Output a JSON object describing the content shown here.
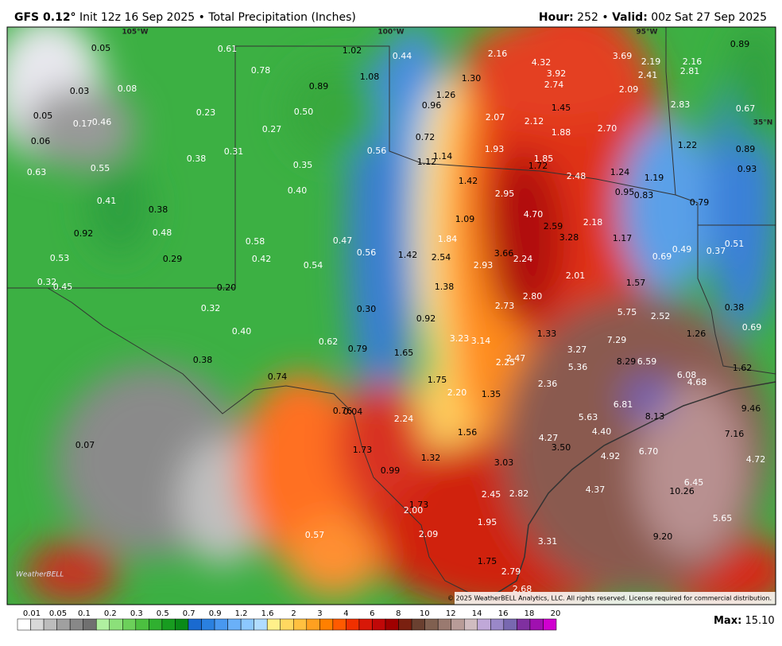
{
  "header": {
    "model": "GFS 0.12°",
    "description": "Init 12z 16 Sep 2025 • Total Precipitation (Inches)",
    "hour_label": "Hour:",
    "hour_value": "252",
    "separator": "•",
    "valid_label": "Valid:",
    "valid_value": "00z Sat 27 Sep 2025"
  },
  "map": {
    "graticule": [
      "105°W",
      "100°W",
      "95°W",
      "35°N"
    ],
    "labels": [
      "0.05",
      "0.61",
      "1.02",
      "0.44",
      "2.16",
      "4.32",
      "3.69",
      "2.19",
      "2.16",
      "0.89",
      "0.78",
      "3.92",
      "2.81",
      "1.30",
      "2.41",
      "0.03",
      "0.08",
      "0.89",
      "1.08",
      "2.74",
      "2.09",
      "1.26",
      "0.96",
      "1.45",
      "2.83",
      "0.67",
      "0.05",
      "0.23",
      "0.50",
      "2.07",
      "2.12",
      "0.17",
      "0.46",
      "1.88",
      "2.70",
      "0.06",
      "0.27",
      "0.72",
      "1.22",
      "0.89",
      "0.31",
      "0.56",
      "1.93",
      "1.85",
      "0.38",
      "1.14",
      "1.12",
      "1.72",
      "0.35",
      "0.93",
      "0.55",
      "0.63",
      "2.48",
      "1.24",
      "1.19",
      "1.42",
      "0.40",
      "2.95",
      "0.95",
      "0.83",
      "0.79",
      "0.41",
      "0.38",
      "4.70",
      "1.09",
      "2.18",
      "2.59",
      "0.92",
      "0.48",
      "1.84",
      "3.28",
      "1.17",
      "0.51",
      "0.58",
      "0.47",
      "0.49",
      "0.37",
      "0.53",
      "0.29",
      "0.42",
      "0.56",
      "1.42",
      "2.54",
      "3.66",
      "2.24",
      "0.69",
      "0.54",
      "2.93",
      "2.01",
      "0.32",
      "0.45",
      "0.20",
      "1.38",
      "1.57",
      "0.32",
      "0.30",
      "2.73",
      "2.80",
      "5.75",
      "2.52",
      "0.38",
      "0.92",
      "0.40",
      "1.33",
      "1.26",
      "0.69",
      "0.62",
      "3.23",
      "3.14",
      "7.29",
      "3.27",
      "0.79",
      "1.65",
      "2.25",
      "2.47",
      "0.38",
      "8.29",
      "6.59",
      "5.36",
      "1.62",
      "0.74",
      "1.75",
      "6.08",
      "4.68",
      "2.36",
      "2.20",
      "1.35",
      "6.81",
      "9.46",
      "0.76",
      "0.04",
      "8.13",
      "2.24",
      "5.63",
      "1.56",
      "4.27",
      "4.40",
      "7.16",
      "0.07",
      "1.73",
      "3.50",
      "6.70",
      "4.92",
      "1.32",
      "3.03",
      "4.72",
      "0.99",
      "6.45",
      "4.37",
      "10.26",
      "2.45",
      "2.82",
      "1.73",
      "2.00",
      "1.95",
      "5.65",
      "0.57",
      "2.09",
      "9.20",
      "3.31",
      "1.75",
      "2.79",
      "2.68"
    ],
    "watermark": "WeatherBELL",
    "copyright": "© 2025 WeatherBELL Analytics, LLC. All rights reserved. License required for commercial distribution."
  },
  "legend": {
    "ticks": [
      "0.01",
      "0.05",
      "0.1",
      "0.2",
      "0.3",
      "0.5",
      "0.7",
      "0.9",
      "1.2",
      "1.6",
      "2",
      "3",
      "4",
      "6",
      "8",
      "10",
      "12",
      "14",
      "16",
      "18",
      "20"
    ],
    "max_label": "Max:",
    "max_value": "15.10"
  }
}
